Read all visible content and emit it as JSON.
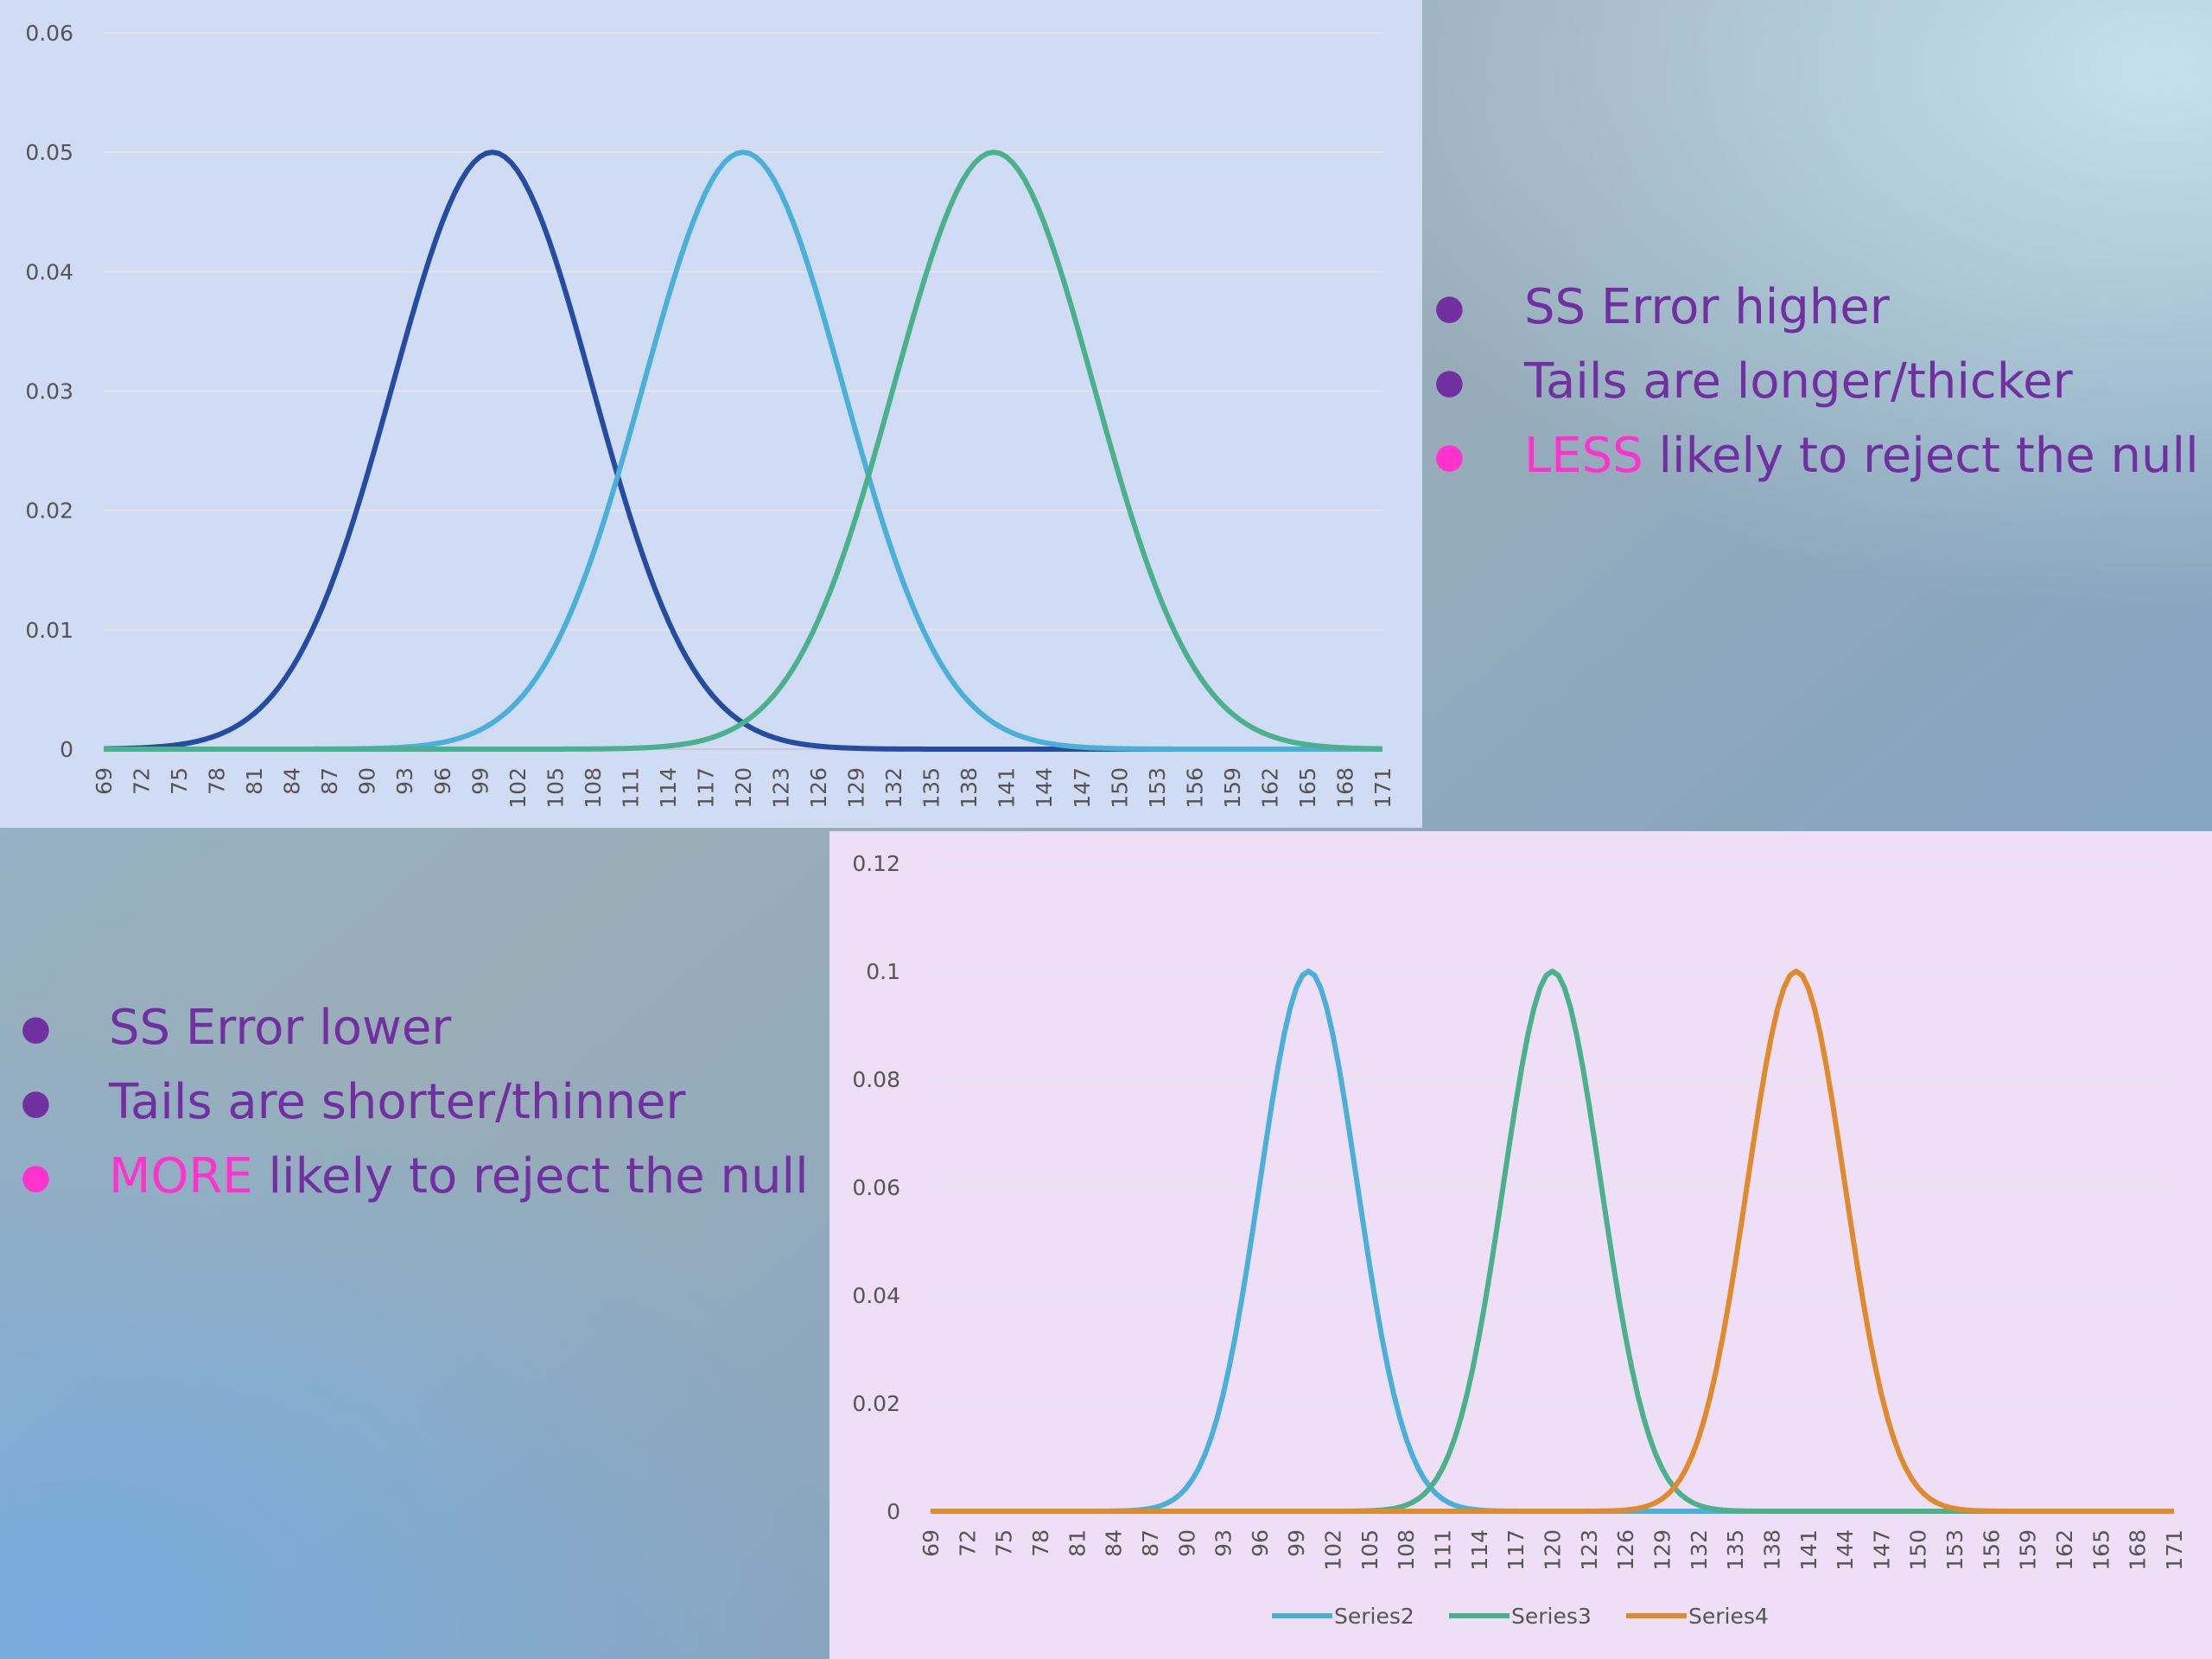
{
  "colors": {
    "bullet_text": "#7030a0",
    "highlight": "#ff33cc",
    "panel_top_bg": "#cfdcf3",
    "panel_bottom_bg": "#eedff6"
  },
  "bullets_top": [
    {
      "highlight": "",
      "text": "SS Error higher",
      "dot_color": "#7030a0"
    },
    {
      "highlight": "",
      "text": "Tails are longer/thicker",
      "dot_color": "#7030a0"
    },
    {
      "highlight": "LESS",
      "text": " likely to reject the null",
      "dot_color": "#ff33cc"
    }
  ],
  "bullets_bottom": [
    {
      "highlight": "",
      "text": "SS Error lower",
      "dot_color": "#7030a0"
    },
    {
      "highlight": "",
      "text": "Tails are shorter/thinner",
      "dot_color": "#7030a0"
    },
    {
      "highlight": "MORE",
      "text": " likely to reject the null",
      "dot_color": "#ff33cc"
    }
  ],
  "chart_data": [
    {
      "type": "line",
      "title": "",
      "xlabel": "",
      "ylabel": "",
      "x_range": [
        69,
        171
      ],
      "x_tick_labels": [
        "69",
        "72",
        "75",
        "78",
        "81",
        "84",
        "87",
        "90",
        "93",
        "96",
        "99",
        "102",
        "105",
        "108",
        "111",
        "114",
        "117",
        "120",
        "123",
        "126",
        "129",
        "132",
        "135",
        "138",
        "141",
        "144",
        "147",
        "150",
        "153",
        "156",
        "159",
        "162",
        "165",
        "168",
        "171"
      ],
      "y_tick_labels": [
        "0",
        "0.01",
        "0.02",
        "0.03",
        "0.04",
        "0.05",
        "0.06"
      ],
      "ylim": [
        0,
        0.06
      ],
      "grid": true,
      "legend": false,
      "series": [
        {
          "color": "#264ca0",
          "mean": 100,
          "sd": 8,
          "peak": 0.05
        },
        {
          "color": "#4ab0d8",
          "mean": 120,
          "sd": 8,
          "peak": 0.05
        },
        {
          "color": "#4bb08c",
          "mean": 140,
          "sd": 8,
          "peak": 0.05
        }
      ]
    },
    {
      "type": "line",
      "title": "",
      "xlabel": "",
      "ylabel": "",
      "x_range": [
        69,
        171
      ],
      "x_tick_labels": [
        "69",
        "72",
        "75",
        "78",
        "81",
        "84",
        "87",
        "90",
        "93",
        "96",
        "99",
        "102",
        "105",
        "108",
        "111",
        "114",
        "117",
        "120",
        "123",
        "126",
        "129",
        "132",
        "135",
        "138",
        "141",
        "144",
        "147",
        "150",
        "153",
        "156",
        "159",
        "162",
        "165",
        "168",
        "171"
      ],
      "y_tick_labels": [
        "0",
        "0.02",
        "0.04",
        "0.06",
        "0.08",
        "0.1",
        "0.12"
      ],
      "ylim": [
        0,
        0.12
      ],
      "grid": true,
      "legend": "bottom",
      "series": [
        {
          "name": "Series2",
          "color": "#4ab0d8",
          "mean": 100,
          "sd": 4,
          "peak": 0.1
        },
        {
          "name": "Series3",
          "color": "#4bb08c",
          "mean": 120,
          "sd": 4,
          "peak": 0.1
        },
        {
          "name": "Series4",
          "color": "#e08a2e",
          "mean": 140,
          "sd": 4,
          "peak": 0.1
        }
      ]
    }
  ]
}
